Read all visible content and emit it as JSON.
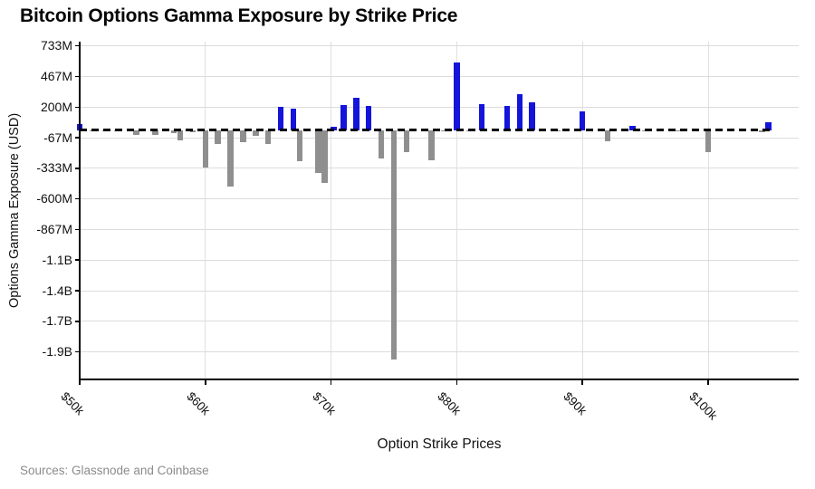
{
  "header": {
    "title": "Bitcoin Options Gamma Exposure by Strike Price"
  },
  "chart_data": {
    "type": "bar",
    "title": "Bitcoin Options Gamma Exposure by Strike Price",
    "xlabel": "Option Strike Prices",
    "ylabel": "Options Gamma Exposure (USD)",
    "source": "Sources: Glassnode and Coinbase",
    "legend": "none",
    "grid": "light gray horizontal and vertical gridlines; dashed black zero baseline",
    "unit": "USD (values in millions)",
    "colors": {
      "positive_bar": "#1414db",
      "negative_bar": "#8f8f8f",
      "gridline": "#dcdcdc",
      "axis": "#000000",
      "title_text": "#050505",
      "source_text": "#8b8b8b"
    },
    "y_axis": {
      "tick_labels": [
        "733M",
        "467M",
        "200M",
        "-67M",
        "-333M",
        "-600M",
        "-867M",
        "-1.1B",
        "-1.4B",
        "-1.7B",
        "-1.9B"
      ],
      "tick_values_m": [
        733.33,
        466.67,
        200,
        -66.67,
        -333.33,
        -600,
        -866.67,
        -1133.33,
        -1400,
        -1666.67,
        -1933.33
      ],
      "ylim_m": [
        -2170,
        733
      ]
    },
    "x_axis": {
      "tick_labels": [
        "$50k",
        "$60k",
        "$70k",
        "$80k",
        "$90k",
        "$100k"
      ],
      "tick_values_k": [
        50,
        60,
        70,
        80,
        90,
        100
      ],
      "xlim_k": [
        50,
        107
      ]
    },
    "bars": [
      {
        "strike_k": 50,
        "value_m": 50
      },
      {
        "strike_k": 51,
        "value_m": -10
      },
      {
        "strike_k": 52,
        "value_m": -10
      },
      {
        "strike_k": 53,
        "value_m": -10
      },
      {
        "strike_k": 54.5,
        "value_m": -45
      },
      {
        "strike_k": 56,
        "value_m": -45
      },
      {
        "strike_k": 57.5,
        "value_m": -30
      },
      {
        "strike_k": 58,
        "value_m": -90
      },
      {
        "strike_k": 59,
        "value_m": -20
      },
      {
        "strike_k": 60,
        "value_m": -330
      },
      {
        "strike_k": 61,
        "value_m": -120
      },
      {
        "strike_k": 62,
        "value_m": -490
      },
      {
        "strike_k": 63,
        "value_m": -105
      },
      {
        "strike_k": 64,
        "value_m": -50
      },
      {
        "strike_k": 65,
        "value_m": -120
      },
      {
        "strike_k": 66,
        "value_m": 200
      },
      {
        "strike_k": 67,
        "value_m": 185
      },
      {
        "strike_k": 67.5,
        "value_m": -270
      },
      {
        "strike_k": 69,
        "value_m": -375
      },
      {
        "strike_k": 69.5,
        "value_m": -460
      },
      {
        "strike_k": 70.2,
        "value_m": 30
      },
      {
        "strike_k": 71,
        "value_m": 220
      },
      {
        "strike_k": 72,
        "value_m": 280
      },
      {
        "strike_k": 73,
        "value_m": 210
      },
      {
        "strike_k": 74,
        "value_m": -250
      },
      {
        "strike_k": 75,
        "value_m": -2000
      },
      {
        "strike_k": 76,
        "value_m": -195
      },
      {
        "strike_k": 78,
        "value_m": -265
      },
      {
        "strike_k": 79,
        "value_m": -10
      },
      {
        "strike_k": 80,
        "value_m": 590
      },
      {
        "strike_k": 81,
        "value_m": -10
      },
      {
        "strike_k": 82,
        "value_m": 225
      },
      {
        "strike_k": 83,
        "value_m": -10
      },
      {
        "strike_k": 84,
        "value_m": 210
      },
      {
        "strike_k": 85,
        "value_m": 310
      },
      {
        "strike_k": 86,
        "value_m": 240
      },
      {
        "strike_k": 88,
        "value_m": -10
      },
      {
        "strike_k": 90,
        "value_m": 160
      },
      {
        "strike_k": 92,
        "value_m": -100
      },
      {
        "strike_k": 94,
        "value_m": 35
      },
      {
        "strike_k": 95,
        "value_m": -15
      },
      {
        "strike_k": 97.5,
        "value_m": -10
      },
      {
        "strike_k": 100,
        "value_m": -195
      },
      {
        "strike_k": 104.3,
        "value_m": -20
      },
      {
        "strike_k": 104.8,
        "value_m": 65
      }
    ]
  }
}
